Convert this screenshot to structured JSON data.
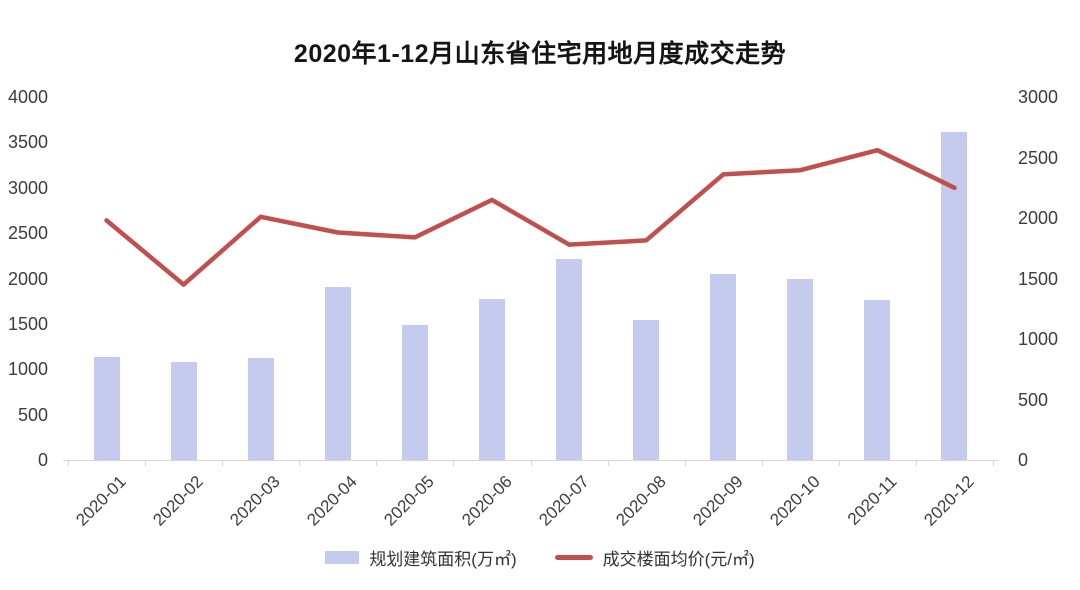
{
  "chart_data": {
    "type": "bar+line",
    "title": "2020年1-12月山东省住宅用地月度成交走势",
    "categories": [
      "2020-01",
      "2020-02",
      "2020-03",
      "2020-04",
      "2020-05",
      "2020-06",
      "2020-07",
      "2020-08",
      "2020-09",
      "2020-10",
      "2020-11",
      "2020-12"
    ],
    "series": [
      {
        "name": "规划建筑面积(万㎡)",
        "type": "bar",
        "axis": "left",
        "color": "#c5cbef",
        "values": [
          1130,
          1080,
          1120,
          1910,
          1490,
          1770,
          2220,
          1540,
          2050,
          1990,
          1760,
          3610
        ]
      },
      {
        "name": "成交楼面均价(元/㎡)",
        "type": "line",
        "axis": "right",
        "color": "#c0504d",
        "values": [
          1980,
          1450,
          2010,
          1880,
          1840,
          2150,
          1780,
          1815,
          2360,
          2395,
          2560,
          2250
        ]
      }
    ],
    "left_axis": {
      "min": 0,
      "max": 4000,
      "step": 500,
      "ticks": [
        0,
        500,
        1000,
        1500,
        2000,
        2500,
        3000,
        3500,
        4000
      ]
    },
    "right_axis": {
      "min": 0,
      "max": 3000,
      "step": 500,
      "ticks": [
        0,
        500,
        1000,
        1500,
        2000,
        2500,
        3000
      ]
    },
    "legend_position": "bottom",
    "grid": false,
    "axis_color": "#d6d6d6",
    "text_color": "#3d3d3d",
    "background": "#ffffff"
  }
}
